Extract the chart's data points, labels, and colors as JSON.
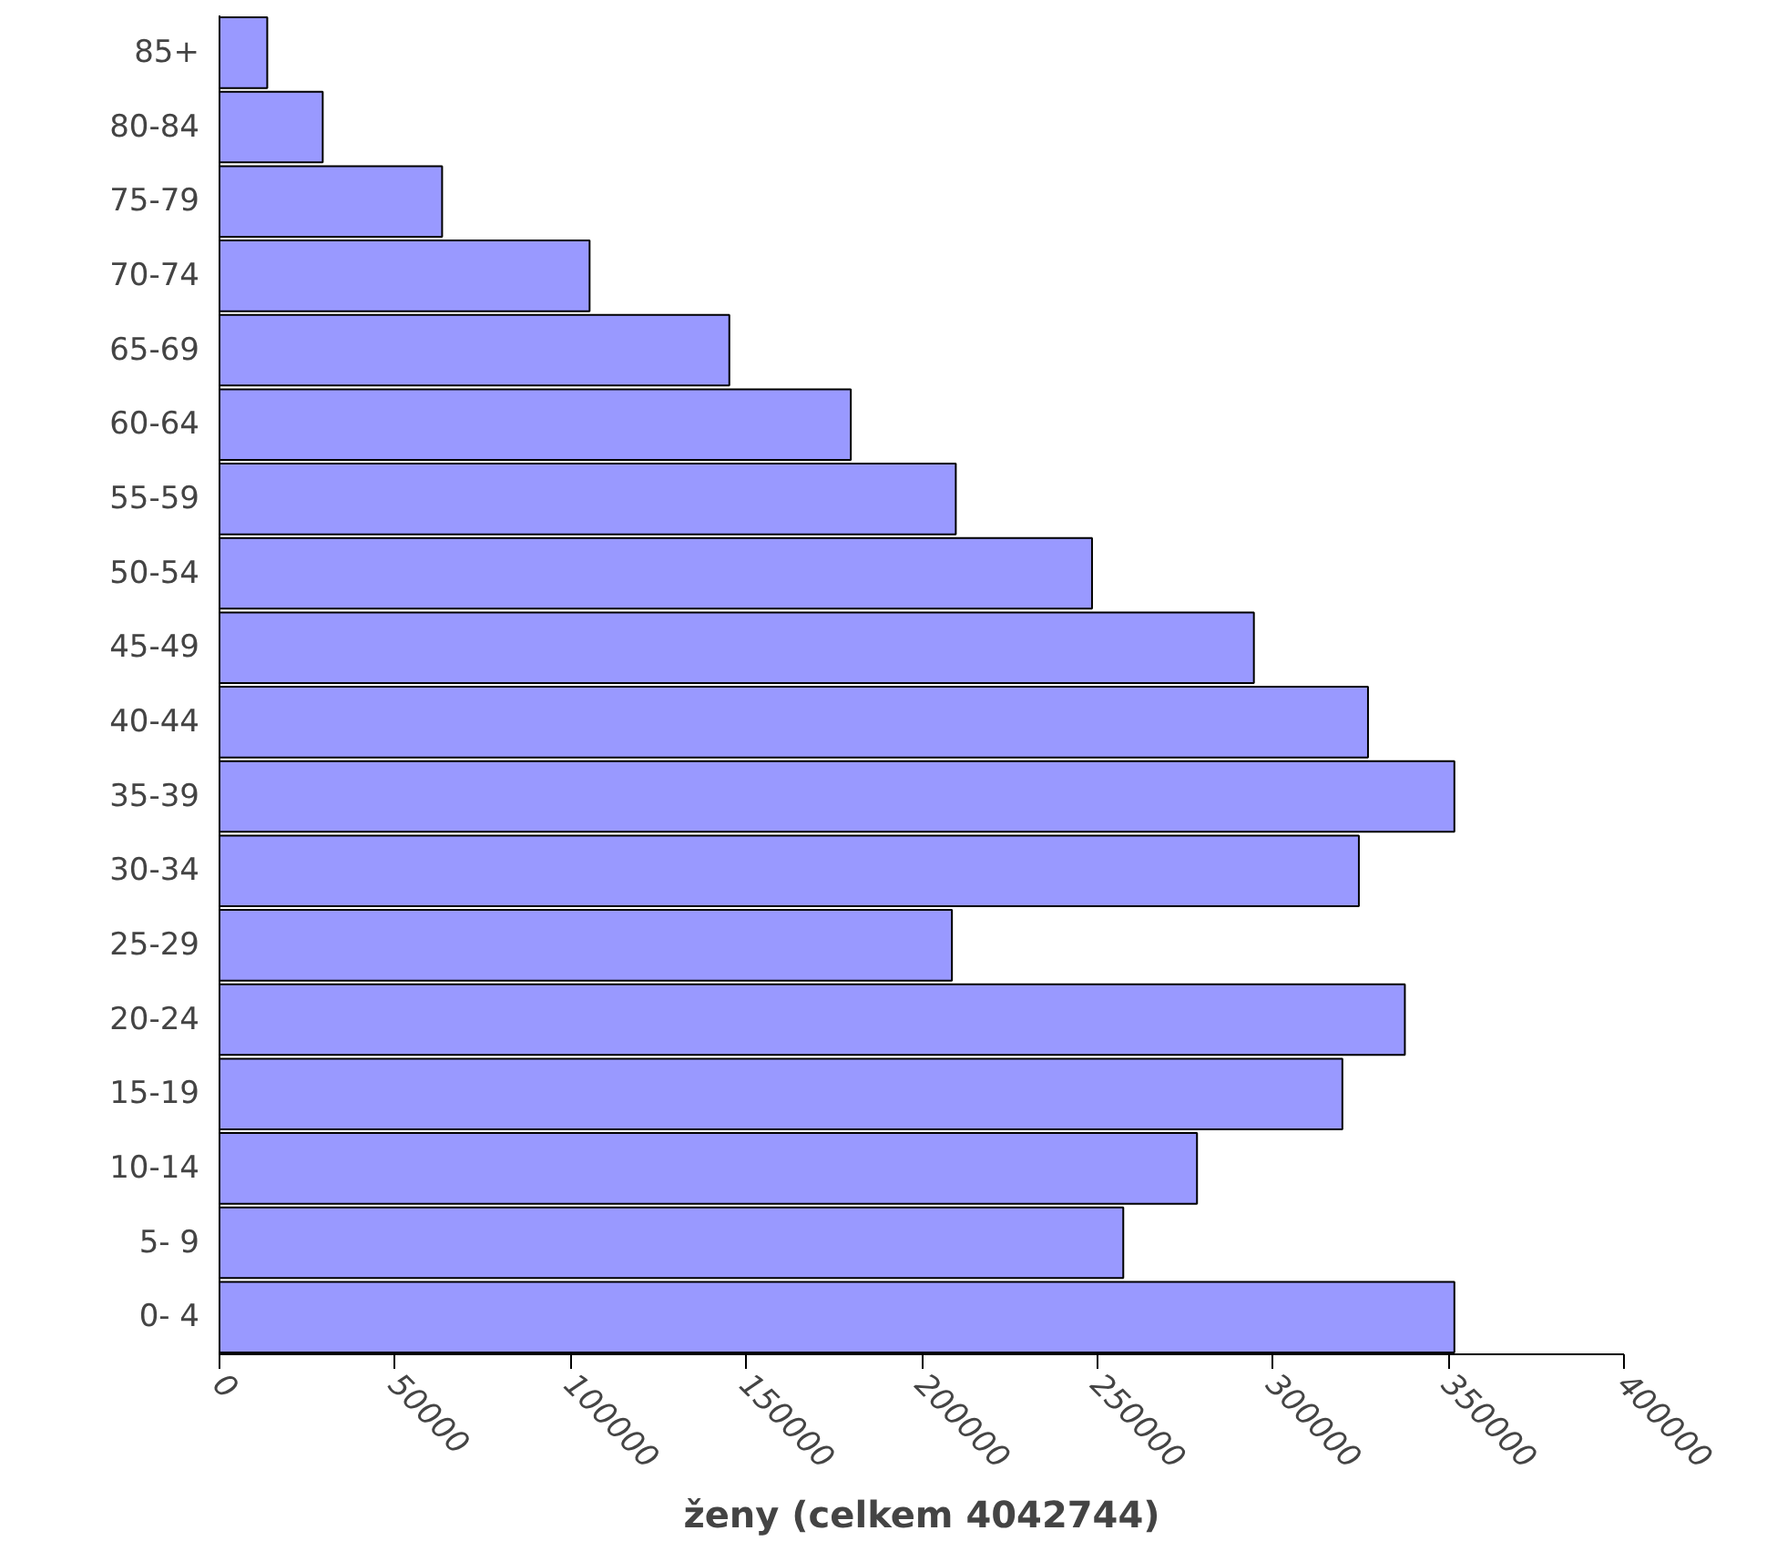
{
  "chart_data": {
    "type": "bar",
    "orientation": "horizontal",
    "xlabel": "ženy (celkem 4042744)",
    "categories": [
      "85+",
      "80-84",
      "75-79",
      "70-74",
      "65-69",
      "60-64",
      "55-59",
      "50-54",
      "45-49",
      "40-44",
      "35-39",
      "30-34",
      "25-29",
      "20-24",
      "15-19",
      "10-14",
      "5- 9",
      "0- 4"
    ],
    "values": [
      13600,
      29400,
      63400,
      105400,
      145200,
      179800,
      209700,
      248500,
      294600,
      327100,
      351700,
      324500,
      208600,
      337600,
      319800,
      278400,
      257400,
      351700
    ],
    "color": "#9999ff",
    "xlim": [
      0,
      400000
    ],
    "xticks": [
      0,
      50000,
      100000,
      150000,
      200000,
      250000,
      300000,
      350000,
      400000
    ],
    "grid": false
  }
}
